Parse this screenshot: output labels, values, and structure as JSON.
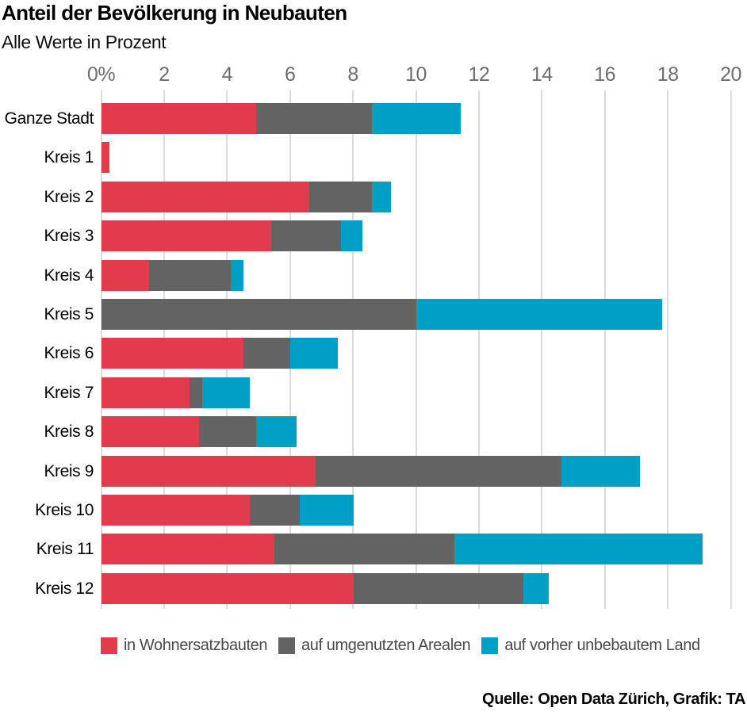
{
  "header": {
    "title": "Anteil der Bevölkerung in Neubauten",
    "subtitle": "Alle Werte in Prozent"
  },
  "chart_data": {
    "type": "bar",
    "orientation": "horizontal",
    "stacked": true,
    "title": "Anteil der Bevölkerung in Neubauten",
    "subtitle": "Alle Werte in Prozent",
    "xlabel": "",
    "ylabel": "",
    "xlim": [
      0,
      20
    ],
    "grid": "vertical",
    "legend_position": "bottom",
    "xticks": [
      0,
      2,
      4,
      6,
      8,
      10,
      12,
      14,
      16,
      18,
      20
    ],
    "xtick_labels": [
      "0%",
      "2",
      "4",
      "6",
      "8",
      "10",
      "12",
      "14",
      "16",
      "18",
      "20"
    ],
    "categories": [
      "Ganze Stadt",
      "Kreis 1",
      "Kreis 2",
      "Kreis 3",
      "Kreis 4",
      "Kreis 5",
      "Kreis 6",
      "Kreis 7",
      "Kreis 8",
      "Kreis 9",
      "Kreis 10",
      "Kreis 11",
      "Kreis 12"
    ],
    "series": [
      {
        "name": "in Wohnersatzbauten",
        "color": "#e23b4e",
        "values": [
          4.9,
          0.25,
          6.6,
          5.4,
          1.5,
          0,
          4.5,
          2.8,
          3.1,
          6.8,
          4.7,
          5.5,
          8.0
        ]
      },
      {
        "name": "auf umgenutzten Arealen",
        "color": "#636363",
        "values": [
          3.7,
          0,
          2.0,
          2.2,
          2.6,
          10.0,
          1.5,
          0.4,
          1.8,
          7.8,
          1.6,
          5.7,
          5.4
        ]
      },
      {
        "name": "auf vorher unbebautem Land",
        "color": "#00a0c6",
        "values": [
          2.8,
          0,
          0.6,
          0.7,
          0.4,
          7.8,
          1.5,
          1.5,
          1.3,
          2.5,
          1.7,
          7.9,
          0.8
        ]
      }
    ],
    "totals": [
      11.4,
      0.25,
      9.2,
      8.3,
      4.5,
      17.8,
      7.5,
      4.7,
      6.2,
      17.1,
      8.0,
      19.1,
      14.2
    ]
  },
  "colors": {
    "red": "#e23b4e",
    "gray": "#636363",
    "blue": "#00a0c6",
    "gridline": "#dcdcdc",
    "axis_label": "#6e6e6e"
  },
  "footer": {
    "source": "Quelle: Open Data Zürich, Grafik: TA"
  }
}
